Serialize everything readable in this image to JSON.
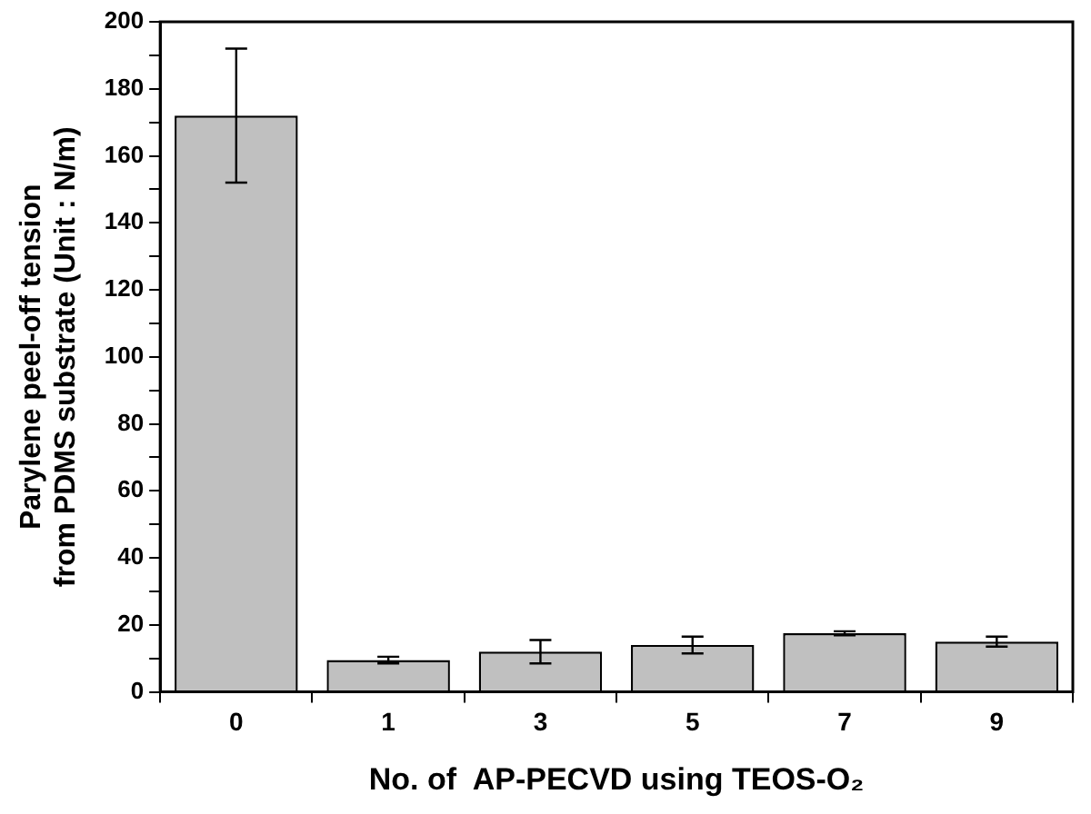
{
  "chart_data": {
    "type": "bar",
    "xlabel": "No. of  AP-PECVD using TEOS-O₂",
    "ylabel": "Parylene peel-off tension\nfrom PDMS substrate (Unit : N/m)",
    "categories": [
      "0",
      "1",
      "3",
      "5",
      "7",
      "9"
    ],
    "values": [
      172,
      9.5,
      12,
      14,
      17.5,
      15
    ],
    "errors": [
      20,
      1,
      3.5,
      2.5,
      0.6,
      1.5
    ],
    "color": "#c0c0c0",
    "ylim": [
      0,
      200
    ],
    "yticks": [
      0,
      {
        "value": 10,
        "label": null
      },
      20,
      {
        "value": 30,
        "label": null
      },
      40,
      {
        "value": 50,
        "label": null
      },
      60,
      {
        "value": 70,
        "label": null
      },
      80,
      {
        "value": 90,
        "label": null
      },
      100,
      {
        "value": 110,
        "label": null
      },
      120,
      {
        "value": 130,
        "label": null
      },
      140,
      {
        "value": 150,
        "label": null
      },
      160,
      {
        "value": 170,
        "label": null
      },
      180,
      {
        "value": 190,
        "label": null
      },
      200
    ],
    "grid": false,
    "legend": false
  }
}
